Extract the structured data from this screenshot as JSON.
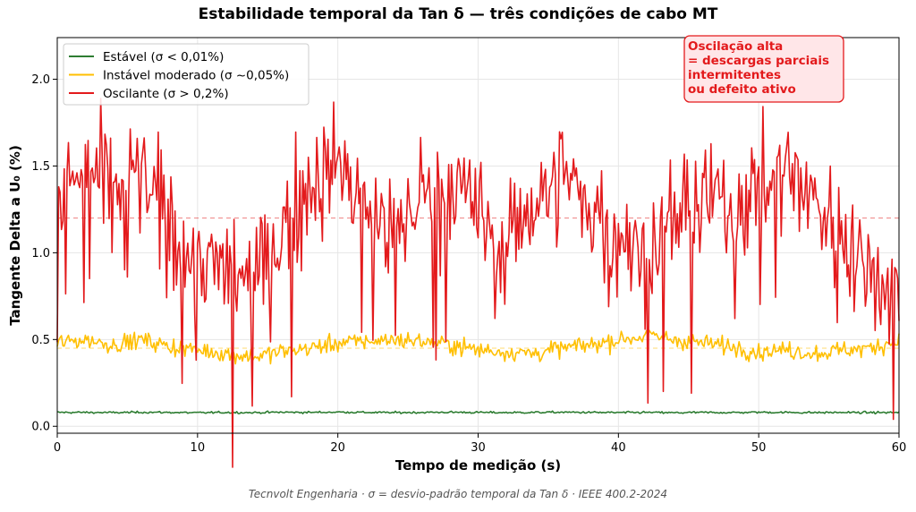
{
  "chart_data": {
    "type": "line",
    "title": "Estabilidade temporal da Tan δ — três condições de cabo MT",
    "xlabel": "Tempo de medição (s)",
    "ylabel": "Tangente Delta a U₀ (%)",
    "xlim": [
      0,
      60
    ],
    "ylim": [
      -0.04,
      2.24
    ],
    "xticks": [
      0,
      10,
      20,
      30,
      40,
      50,
      60
    ],
    "yticks": [
      0.0,
      0.5,
      1.0,
      1.5,
      2.0
    ],
    "xtick_labels": [
      "0",
      "10",
      "20",
      "30",
      "40",
      "50",
      "60"
    ],
    "ytick_labels": [
      "0.0",
      "0.5",
      "1.0",
      "1.5",
      "2.0"
    ],
    "grid": true,
    "legend_position": "top-left",
    "series": [
      {
        "name": "Estável (σ < 0,01%)",
        "color": "#2e7d32",
        "mean": 0.08,
        "sigma": 0.01,
        "x": [
          0,
          2,
          4,
          6,
          8,
          10,
          12,
          14,
          16,
          18,
          20,
          22,
          24,
          26,
          28,
          30,
          32,
          34,
          36,
          38,
          40,
          42,
          44,
          46,
          48,
          50,
          52,
          54,
          56,
          58,
          60
        ],
        "y": [
          0.08,
          0.08,
          0.079,
          0.081,
          0.08,
          0.078,
          0.08,
          0.079,
          0.081,
          0.08,
          0.082,
          0.08,
          0.079,
          0.08,
          0.081,
          0.08,
          0.079,
          0.08,
          0.081,
          0.08,
          0.079,
          0.08,
          0.078,
          0.08,
          0.079,
          0.081,
          0.08,
          0.079,
          0.08,
          0.079,
          0.08
        ]
      },
      {
        "name": "Instável moderado (σ ~0,05%)",
        "color": "#ffbf00",
        "mean": 0.45,
        "sigma": 0.05,
        "x": [
          0,
          2,
          4,
          6,
          8,
          10,
          12,
          14,
          16,
          18,
          20,
          22,
          24,
          26,
          28,
          30,
          32,
          34,
          36,
          38,
          40,
          42,
          44,
          46,
          48,
          50,
          52,
          54,
          56,
          58,
          60
        ],
        "y": [
          0.48,
          0.5,
          0.47,
          0.5,
          0.46,
          0.44,
          0.42,
          0.4,
          0.43,
          0.45,
          0.48,
          0.49,
          0.5,
          0.49,
          0.47,
          0.44,
          0.43,
          0.42,
          0.45,
          0.47,
          0.5,
          0.52,
          0.5,
          0.48,
          0.46,
          0.43,
          0.44,
          0.42,
          0.44,
          0.45,
          0.5
        ]
      },
      {
        "name": "Oscilante (σ > 0,2%)",
        "color": "#e31a1c",
        "mean": 1.2,
        "sigma": 0.2,
        "x": [
          0,
          2,
          4,
          6,
          8,
          10,
          12,
          14,
          16,
          18,
          20,
          22,
          24,
          26,
          28,
          30,
          32,
          34,
          36,
          38,
          40,
          42,
          44,
          46,
          48,
          50,
          52,
          54,
          56,
          58,
          60
        ],
        "y": [
          1.3,
          1.5,
          1.35,
          1.45,
          1.15,
          0.95,
          0.9,
          0.85,
          1.1,
          1.4,
          1.5,
          1.25,
          1.1,
          1.35,
          1.4,
          1.2,
          1.05,
          1.3,
          1.45,
          1.25,
          1.1,
          1.0,
          1.2,
          1.3,
          1.25,
          1.4,
          1.5,
          1.3,
          1.1,
          0.9,
          0.8
        ]
      }
    ],
    "reference_lines": [
      {
        "y": 1.2,
        "color": "#e31a1c",
        "style": "dashed"
      },
      {
        "y": 0.45,
        "color": "#ffbf00",
        "style": "dashed"
      }
    ],
    "annotation": {
      "lines": [
        "Oscilação alta",
        "= descargas parciais",
        "intermitentes",
        "ou defeito ativo"
      ],
      "color": "#e31a1c",
      "position": "top-right"
    }
  },
  "footer": "Tecnvolt Engenharia · σ = desvio-padrão temporal da Tan δ · IEEE 400.2-2024"
}
